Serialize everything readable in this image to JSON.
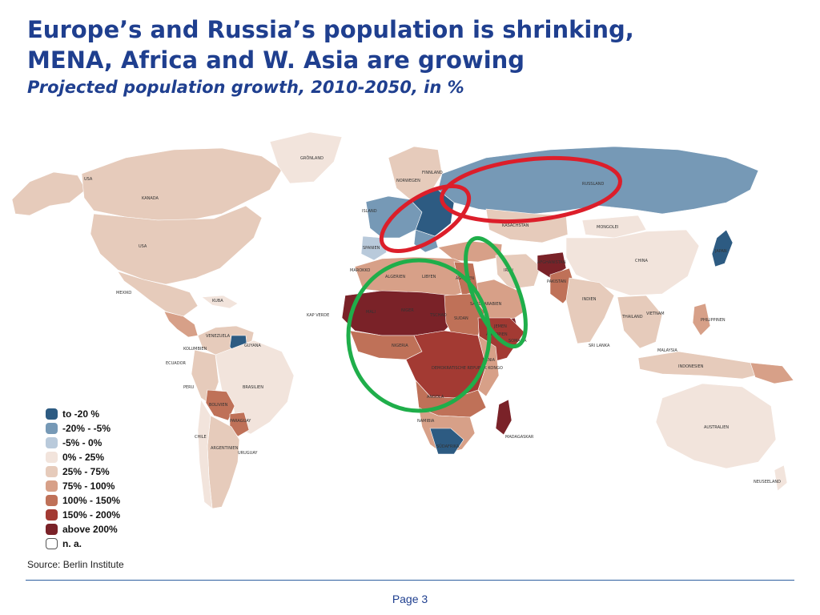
{
  "title": {
    "line1": "Europe’s and Russia’s population is shrinking,",
    "line2": "MENA, Africa and W. Asia are growing",
    "subtitle": "Projected population growth, 2010-2050, in %"
  },
  "legend": [
    {
      "label": "to -20 %",
      "color": "#2d5b82"
    },
    {
      "label": "-20% - -5%",
      "color": "#7699b6"
    },
    {
      "label": "-5% - 0%",
      "color": "#b9cadb"
    },
    {
      "label": "0% - 25%",
      "color": "#f2e4dc"
    },
    {
      "label": "25% - 75%",
      "color": "#e6cbbb"
    },
    {
      "label": "75% - 100%",
      "color": "#d7a088"
    },
    {
      "label": "100% - 150%",
      "color": "#bf7158"
    },
    {
      "label": "150% - 200%",
      "color": "#a33a33"
    },
    {
      "label": "above 200%",
      "color": "#7a2228"
    },
    {
      "label": "n. a.",
      "color": "#ffffff"
    }
  ],
  "map_labels": {
    "usa": "USA",
    "canada": "KANADA",
    "mexico": "MEXIKO",
    "brazil": "BRASILIEN",
    "argentina": "ARGENTINIEN",
    "chile": "CHILE",
    "peru": "PERU",
    "bolivia": "BOLIVIEN",
    "paraguay": "PARAGUAY",
    "uruguay": "URUGUAY",
    "colombia": "KOLUMBIEN",
    "venezuela": "VENEZUELA",
    "ecuador": "ECUADOR",
    "guyana": "GUYANA",
    "alaska": "USA",
    "greenland": "GRÖNLAND",
    "iceland": "ISLAND",
    "russia": "RUSSLAND",
    "mongolia": "MONGOLEI",
    "china": "CHINA",
    "kazakhstan": "KASACHSTAN",
    "india": "INDIEN",
    "pakistan": "PAKISTAN",
    "afghanistan": "AFGHANISTAN",
    "iran": "IRAN",
    "saudi": "SAUDI-ARABIEN",
    "algeria": "ALGERIEN",
    "libya": "LIBYEN",
    "egypt": "ÄGYPTEN",
    "mali": "MALI",
    "niger": "NIGER",
    "chad": "TSCHAD",
    "sudan": "SUDAN",
    "nigeria": "NIGERIA",
    "ethiopia": "ÄTHIOPIEN",
    "kenya": "KENIA",
    "drc": "DEMOKRATISCHE REPUBLIK KONGO",
    "angola": "ANGOLA",
    "namibia": "NAMIBIA",
    "south_africa": "SÜDAFRIKA",
    "madagascar": "MADAGASKAR",
    "australia": "AUSTRALIEN",
    "indonesia": "INDONESIEN",
    "japan": "JAPAN",
    "philippines": "PHILIPPINEN",
    "new_zealand": "NEUSEELAND",
    "thailand": "THAILAND",
    "vietnam": "VIETNAM",
    "malaysia": "MALAYSIA",
    "sri_lanka": "SRI LANKA",
    "somalia": "SOMALIA",
    "yemen": "JEMEN",
    "morocco": "MAROKKO",
    "norway": "NORWEGEN",
    "finland": "FINNLAND",
    "spain": "SPANIEN",
    "cuba": "KUBA",
    "cape_verde": "KAP VERDE"
  },
  "source": "Source: Berlin Institute",
  "page": "Page 3",
  "colors": {
    "title": "#1f3f8f",
    "red_circle": "#dc1e2a",
    "green_circle": "#1fae4a",
    "ocean": "#ffffff"
  }
}
